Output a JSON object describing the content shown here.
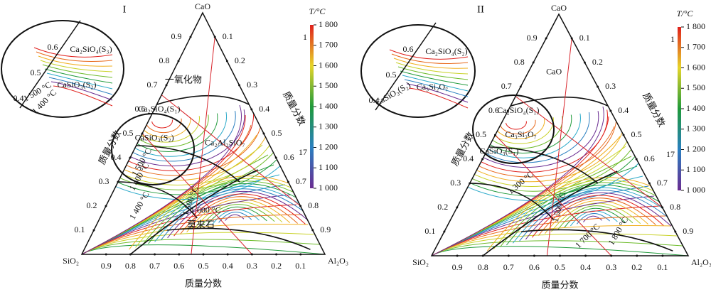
{
  "panels": [
    {
      "label": "I",
      "vertices": {
        "top": "CaO",
        "left": "SiO₂",
        "right": "Al₂O₃"
      },
      "axis_label": "质量分数",
      "phase_labels": [
        "一氧化物",
        "Ca₂SiO₄(S₁)",
        "CaSiO₃(S₂)",
        "Ca₂Al₂SiO₇",
        "莫来石"
      ],
      "temperature_labels": [
        "1 500 °C",
        "1 400 °C",
        "1 400 °C",
        "1 500 °C",
        "1 600 °C"
      ],
      "inset": {
        "labels": [
          "Ca₂SiO₄(S₃)",
          "CaSiO₃(S₂)",
          "1 500 °C",
          "1 400 °C"
        ],
        "ticks": [
          "0.6",
          "0.5",
          "0.4"
        ]
      }
    },
    {
      "label": "II",
      "vertices": {
        "top": "CaO",
        "left": "SiO₂",
        "right": "Al₂O₃"
      },
      "axis_label": "质量分数",
      "phase_labels": [
        "CaO",
        "Ca₂SiO₄(S₁)",
        "Ca₃Si₂O₇",
        "CaSiO₃(S₁)"
      ],
      "temperature_labels": [
        "1 300 °C",
        "1 500 °C",
        "1 700 °C",
        "1 800 °C"
      ],
      "inset": {
        "labels": [
          "Ca₂SiO₄(S₂)",
          "Ca₃Si₂O₇",
          "CaSiO₃(S₂)"
        ],
        "ticks": [
          "0.6",
          "0.5",
          "0.4"
        ]
      }
    }
  ],
  "ticks": [
    "0.1",
    "0.2",
    "0.3",
    "0.4",
    "0.5",
    "0.6",
    "0.7",
    "0.8",
    "0.9"
  ],
  "colorbar": {
    "title": "T/°C",
    "labels": [
      "1 800",
      "1 700",
      "1 600",
      "1 500",
      "1 400",
      "1 300",
      "1 200",
      "1 100",
      "1 000"
    ],
    "extra": [
      "1",
      "17"
    ]
  }
}
